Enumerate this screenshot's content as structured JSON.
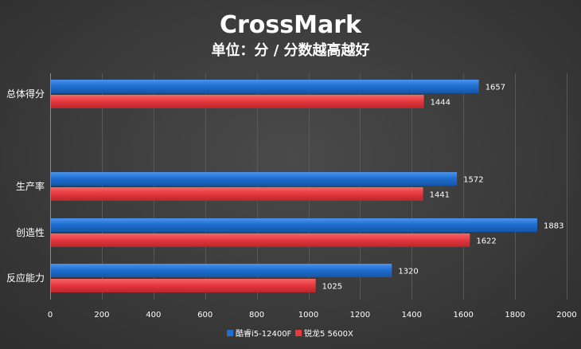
{
  "chart_data": {
    "type": "bar",
    "orientation": "horizontal",
    "title": "CrossMark",
    "subtitle": "单位：分 / 分数越高越好",
    "categories": [
      "总体得分",
      "生产率",
      "创造性",
      "反应能力"
    ],
    "series": [
      {
        "name": "酷睿i5-12400F",
        "values": [
          1657,
          1572,
          1883,
          1320
        ],
        "color": "#1f6fd1"
      },
      {
        "name": "锐龙5 5600X",
        "values": [
          1444,
          1441,
          1622,
          1025
        ],
        "color": "#e8393f"
      }
    ],
    "xlim": [
      0,
      2000
    ],
    "xticks": [
      0,
      200,
      400,
      600,
      800,
      1000,
      1200,
      1400,
      1600,
      1800,
      2000
    ],
    "grid": true,
    "legend_position": "bottom",
    "xlabel": "",
    "ylabel": ""
  }
}
